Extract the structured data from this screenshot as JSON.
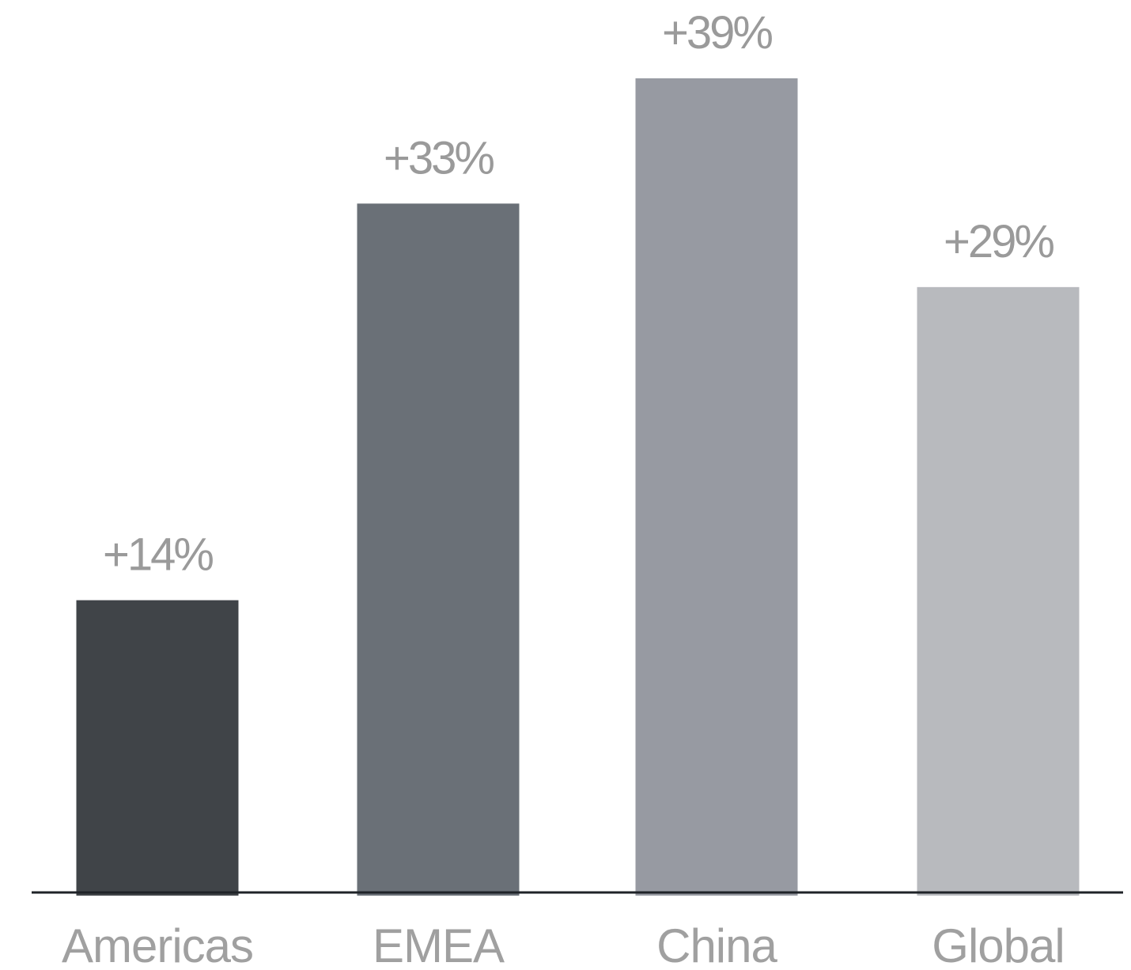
{
  "chart_data": {
    "type": "bar",
    "categories": [
      "Americas",
      "EMEA",
      "China",
      "Global"
    ],
    "values": [
      14,
      33,
      39,
      29
    ],
    "data_labels": [
      "+14%",
      "+33%",
      "+39%",
      "+29%"
    ],
    "colors": [
      "#404448",
      "#6a7077",
      "#979aa2",
      "#b8babe"
    ],
    "axis_color": "#1f2328",
    "title": "",
    "xlabel": "",
    "ylabel": "",
    "ylim": [
      0,
      39
    ],
    "grid": false,
    "legend": "none"
  }
}
